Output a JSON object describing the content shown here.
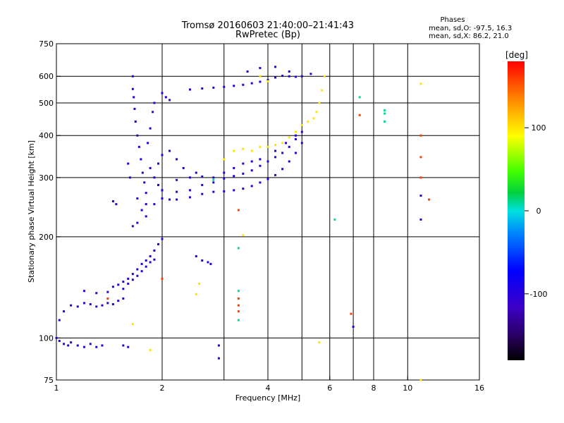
{
  "chart_data": {
    "type": "scatter",
    "title": "Tromsø 20160603 21:40:00–21:41:43",
    "subtitle": "RwPretec (Bp)",
    "xlabel": "Frequency [MHz]",
    "ylabel": "Stationary phase Virtual Height [km]",
    "x_scale": "log",
    "y_scale": "log",
    "xlim": [
      1,
      16
    ],
    "ylim": [
      75,
      750
    ],
    "x_ticks": [
      1,
      2,
      4,
      6,
      8,
      10,
      16
    ],
    "x_tick_labels": [
      "1",
      "2",
      "4",
      "6",
      "8",
      "10",
      "16"
    ],
    "x_gridlines": [
      2,
      3,
      4,
      5,
      6,
      7,
      8,
      10
    ],
    "y_ticks": [
      75,
      100,
      200,
      300,
      400,
      500,
      600,
      750
    ],
    "y_tick_labels": [
      "75",
      "100",
      "200",
      "300",
      "400",
      "500",
      "600",
      "750"
    ],
    "y_gridlines": [
      100,
      200,
      300,
      400,
      500,
      600
    ],
    "grid": true,
    "stats": {
      "title": "Phases",
      "line_o": "mean, sd,O: -97.5, 16.3",
      "line_x": "mean, sd,X:  86.2, 21.0"
    },
    "colorbar": {
      "label": "[deg]",
      "min": -180,
      "max": 180,
      "ticks": [
        100,
        0,
        -100
      ],
      "tick_labels": [
        "100",
        "0",
        "-100"
      ]
    },
    "series": [
      {
        "points": [
          [
            1.0,
            100,
            -100
          ],
          [
            1.02,
            98,
            -100
          ],
          [
            1.05,
            96,
            -100
          ],
          [
            1.08,
            95,
            -100
          ],
          [
            1.1,
            97,
            -100
          ],
          [
            1.15,
            95,
            -100
          ],
          [
            1.2,
            94,
            -100
          ],
          [
            1.25,
            96,
            -100
          ],
          [
            1.3,
            94,
            -100
          ],
          [
            1.35,
            95,
            -100
          ],
          [
            1.02,
            113,
            -100
          ],
          [
            1.05,
            120,
            -100
          ],
          [
            1.1,
            125,
            -100
          ],
          [
            1.15,
            124,
            -100
          ],
          [
            1.2,
            127,
            -100
          ],
          [
            1.25,
            126,
            -100
          ],
          [
            1.3,
            124,
            -100
          ],
          [
            1.35,
            125,
            -100
          ],
          [
            1.4,
            127,
            -100
          ],
          [
            1.45,
            126,
            -100
          ],
          [
            1.5,
            129,
            -100
          ],
          [
            1.55,
            131,
            -100
          ],
          [
            1.2,
            138,
            -100
          ],
          [
            1.3,
            136,
            -100
          ],
          [
            1.4,
            137,
            -100
          ],
          [
            1.45,
            142,
            -100
          ],
          [
            1.5,
            144,
            -100
          ],
          [
            1.55,
            147,
            -100
          ],
          [
            1.6,
            150,
            -100
          ],
          [
            1.65,
            155,
            -100
          ],
          [
            1.7,
            160,
            -100
          ],
          [
            1.75,
            166,
            -100
          ],
          [
            1.8,
            170,
            -100
          ],
          [
            1.85,
            175,
            -100
          ],
          [
            1.9,
            182,
            -100
          ],
          [
            1.95,
            190,
            -100
          ],
          [
            2.0,
            197,
            -100
          ],
          [
            1.55,
            140,
            -100
          ],
          [
            1.6,
            145,
            -100
          ],
          [
            1.65,
            149,
            -100
          ],
          [
            1.7,
            153,
            -100
          ],
          [
            1.75,
            158,
            -100
          ],
          [
            1.8,
            163,
            -100
          ],
          [
            1.85,
            168,
            -100
          ],
          [
            1.9,
            171,
            -100
          ],
          [
            1.65,
            600,
            -100
          ],
          [
            1.65,
            550,
            -100
          ],
          [
            1.66,
            520,
            -100
          ],
          [
            1.67,
            480,
            -100
          ],
          [
            1.68,
            440,
            -100
          ],
          [
            1.7,
            400,
            -100
          ],
          [
            1.72,
            370,
            -100
          ],
          [
            1.74,
            340,
            -100
          ],
          [
            1.76,
            310,
            -100
          ],
          [
            1.78,
            290,
            -100
          ],
          [
            1.8,
            270,
            -100
          ],
          [
            1.8,
            250,
            -100
          ],
          [
            1.8,
            230,
            -100
          ],
          [
            1.75,
            240,
            -100
          ],
          [
            1.7,
            260,
            -100
          ],
          [
            1.62,
            300,
            -100
          ],
          [
            1.6,
            330,
            -100
          ],
          [
            1.82,
            380,
            -100
          ],
          [
            1.85,
            420,
            -100
          ],
          [
            1.88,
            470,
            -100
          ],
          [
            1.9,
            500,
            -100
          ],
          [
            1.85,
            320,
            -100
          ],
          [
            1.9,
            300,
            -100
          ],
          [
            1.95,
            285,
            -100
          ],
          [
            2.0,
            275,
            -100
          ],
          [
            1.95,
            330,
            -100
          ],
          [
            2.0,
            350,
            -100
          ],
          [
            1.9,
            250,
            -100
          ],
          [
            1.7,
            220,
            -100
          ],
          [
            1.65,
            215,
            -100
          ],
          [
            1.45,
            255,
            -100
          ],
          [
            1.48,
            250,
            -100
          ],
          [
            2.0,
            535,
            -100
          ],
          [
            2.05,
            520,
            -100
          ],
          [
            2.1,
            510,
            -100
          ],
          [
            2.0,
            260,
            -100
          ],
          [
            2.1,
            258,
            -100
          ],
          [
            2.2,
            258,
            -100
          ],
          [
            2.4,
            262,
            -100
          ],
          [
            2.6,
            268,
            -100
          ],
          [
            2.8,
            272,
            -100
          ],
          [
            3.0,
            273,
            -100
          ],
          [
            3.2,
            275,
            -100
          ],
          [
            3.4,
            278,
            -100
          ],
          [
            3.6,
            283,
            -100
          ],
          [
            3.8,
            290,
            -100
          ],
          [
            4.0,
            297,
            -100
          ],
          [
            4.2,
            305,
            -100
          ],
          [
            4.4,
            318,
            -100
          ],
          [
            4.6,
            335,
            -100
          ],
          [
            4.8,
            355,
            -100
          ],
          [
            5.0,
            380,
            -100
          ],
          [
            2.0,
            275,
            -100
          ],
          [
            2.2,
            272,
            -100
          ],
          [
            2.4,
            275,
            -100
          ],
          [
            2.6,
            285,
            -100
          ],
          [
            2.8,
            290,
            -100
          ],
          [
            3.0,
            298,
            -100
          ],
          [
            3.2,
            303,
            -100
          ],
          [
            3.4,
            308,
            -100
          ],
          [
            3.6,
            315,
            -100
          ],
          [
            3.8,
            325,
            -100
          ],
          [
            4.0,
            335,
            -100
          ],
          [
            4.2,
            345,
            -100
          ],
          [
            4.4,
            355,
            -100
          ],
          [
            4.6,
            370,
            -100
          ],
          [
            4.8,
            390,
            -100
          ],
          [
            2.2,
            295,
            -100
          ],
          [
            2.4,
            300,
            -100
          ],
          [
            2.6,
            302,
            -100
          ],
          [
            2.8,
            300,
            -100
          ],
          [
            3.0,
            310,
            -100
          ],
          [
            3.2,
            320,
            -100
          ],
          [
            3.4,
            330,
            -100
          ],
          [
            3.6,
            335,
            -100
          ],
          [
            3.8,
            340,
            -100
          ],
          [
            4.2,
            360,
            -100
          ],
          [
            4.5,
            380,
            -100
          ],
          [
            4.8,
            400,
            -100
          ],
          [
            5.0,
            410,
            -100
          ],
          [
            2.1,
            360,
            -100
          ],
          [
            2.2,
            340,
            -100
          ],
          [
            2.3,
            320,
            -100
          ],
          [
            2.5,
            310,
            -100
          ],
          [
            2.4,
            548,
            -100
          ],
          [
            2.6,
            552,
            -100
          ],
          [
            2.8,
            555,
            -100
          ],
          [
            3.0,
            558,
            -100
          ],
          [
            3.2,
            562,
            -100
          ],
          [
            3.4,
            566,
            -100
          ],
          [
            3.6,
            572,
            -100
          ],
          [
            3.8,
            578,
            -100
          ],
          [
            4.0,
            585,
            -100
          ],
          [
            4.2,
            595,
            -100
          ],
          [
            4.4,
            602,
            -100
          ],
          [
            4.6,
            600,
            -100
          ],
          [
            4.8,
            598,
            -100
          ],
          [
            5.0,
            600,
            -100
          ],
          [
            3.5,
            620,
            -100
          ],
          [
            3.8,
            635,
            -100
          ],
          [
            4.2,
            640,
            -100
          ],
          [
            4.6,
            620,
            -100
          ],
          [
            5.3,
            610,
            -100
          ],
          [
            2.5,
            175,
            -100
          ],
          [
            2.6,
            170,
            -100
          ],
          [
            2.7,
            168,
            -100
          ],
          [
            2.75,
            166,
            -100
          ],
          [
            1.55,
            95,
            -100
          ],
          [
            1.6,
            94,
            -100
          ],
          [
            2.9,
            95,
            -100
          ],
          [
            2.9,
            87,
            -100
          ],
          [
            7.0,
            108,
            -100
          ],
          [
            10.9,
            225,
            -100
          ],
          [
            10.9,
            265,
            -100
          ],
          [
            2.0,
            150,
            160
          ],
          [
            1.4,
            131,
            160
          ],
          [
            3.3,
            240,
            160
          ],
          [
            3.3,
            131,
            160
          ],
          [
            3.3,
            125,
            160
          ],
          [
            3.3,
            120,
            160
          ],
          [
            6.9,
            118,
            160
          ],
          [
            7.3,
            460,
            160
          ],
          [
            10.9,
            400,
            160
          ],
          [
            10.9,
            345,
            160
          ],
          [
            10.9,
            300,
            160
          ],
          [
            11.5,
            258,
            160
          ],
          [
            2.8,
            295,
            10
          ],
          [
            3.3,
            185,
            10
          ],
          [
            3.3,
            138,
            10
          ],
          [
            3.3,
            113,
            10
          ],
          [
            6.2,
            225,
            10
          ],
          [
            7.3,
            520,
            10
          ],
          [
            8.6,
            475,
            10
          ],
          [
            8.6,
            465,
            10
          ],
          [
            8.6,
            440,
            10
          ],
          [
            3.0,
            340,
            100
          ],
          [
            3.2,
            360,
            100
          ],
          [
            3.4,
            365,
            100
          ],
          [
            3.6,
            360,
            100
          ],
          [
            3.8,
            370,
            100
          ],
          [
            4.0,
            370,
            100
          ],
          [
            4.2,
            375,
            100
          ],
          [
            4.4,
            380,
            100
          ],
          [
            4.6,
            395,
            100
          ],
          [
            4.8,
            410,
            100
          ],
          [
            5.0,
            430,
            100
          ],
          [
            5.2,
            440,
            100
          ],
          [
            5.4,
            450,
            100
          ],
          [
            5.5,
            470,
            100
          ],
          [
            5.6,
            500,
            100
          ],
          [
            5.7,
            545,
            100
          ],
          [
            5.8,
            600,
            100
          ],
          [
            4.0,
            580,
            100
          ],
          [
            3.8,
            600,
            100
          ],
          [
            2.55,
            145,
            100
          ],
          [
            2.5,
            135,
            100
          ],
          [
            1.65,
            110,
            100
          ],
          [
            1.85,
            92,
            100
          ],
          [
            5.6,
            97,
            100
          ],
          [
            10.9,
            570,
            100
          ],
          [
            10.9,
            75,
            100
          ],
          [
            3.4,
            202,
            100
          ]
        ]
      }
    ]
  }
}
